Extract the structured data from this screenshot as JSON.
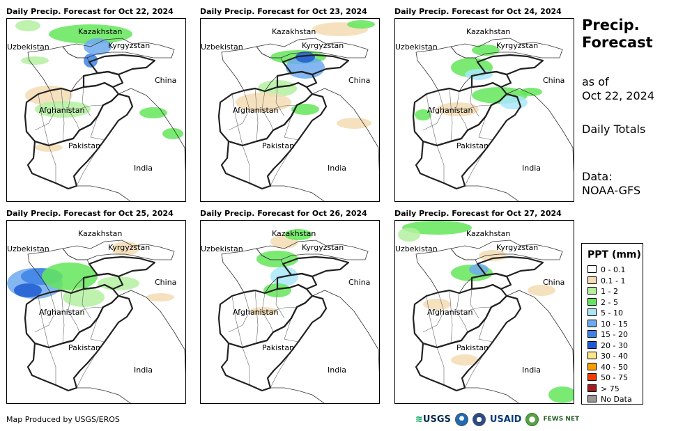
{
  "panels": [
    {
      "title": "Daily Precip. Forecast for Oct 22, 2024"
    },
    {
      "title": "Daily Precip. Forecast for Oct 23, 2024"
    },
    {
      "title": "Daily Precip. Forecast for Oct 24, 2024"
    },
    {
      "title": "Daily Precip. Forecast for Oct 25, 2024"
    },
    {
      "title": "Daily Precip. Forecast for Oct 26, 2024"
    },
    {
      "title": "Daily Precip. Forecast for Oct 27, 2024"
    }
  ],
  "map_labels": {
    "kazakhstan": "Kazakhstan",
    "uzbekistan": "Uzbekistan",
    "kyrgyzstan": "Kyrgyzstan",
    "china": "China",
    "afghanistan": "Afghanistan",
    "pakistan": "Pakistan",
    "india": "India"
  },
  "side": {
    "title_line1": "Precip.",
    "title_line2": "Forecast",
    "asof_line1": "as of",
    "asof_line2": "Oct 22, 2024",
    "totals": "Daily Totals",
    "data_line1": "Data:",
    "data_line2": "NOAA-GFS"
  },
  "legend": {
    "title": "PPT (mm)",
    "items": [
      {
        "label": "0 - 0.1",
        "color": "#ffffff"
      },
      {
        "label": "0.1 - 1",
        "color": "#f5dcb4"
      },
      {
        "label": "1 - 2",
        "color": "#b4f0a0"
      },
      {
        "label": "2 - 5",
        "color": "#64e65a"
      },
      {
        "label": "5 - 10",
        "color": "#aae6fa"
      },
      {
        "label": "10 - 15",
        "color": "#6eaaf0"
      },
      {
        "label": "15 - 20",
        "color": "#3c82e6"
      },
      {
        "label": "20 - 30",
        "color": "#1e5ad2"
      },
      {
        "label": "30 - 40",
        "color": "#fae68c"
      },
      {
        "label": "40 - 50",
        "color": "#f5a000"
      },
      {
        "label": "50 - 75",
        "color": "#f03c00"
      },
      {
        "label": "> 75",
        "color": "#a01e1e"
      },
      {
        "label": "No Data",
        "color": "#999999"
      }
    ]
  },
  "footer": {
    "credit": "Map Produced by USGS/EROS",
    "usgs": "USGS",
    "usaid": "USAID",
    "fews": "FEWS NET"
  }
}
